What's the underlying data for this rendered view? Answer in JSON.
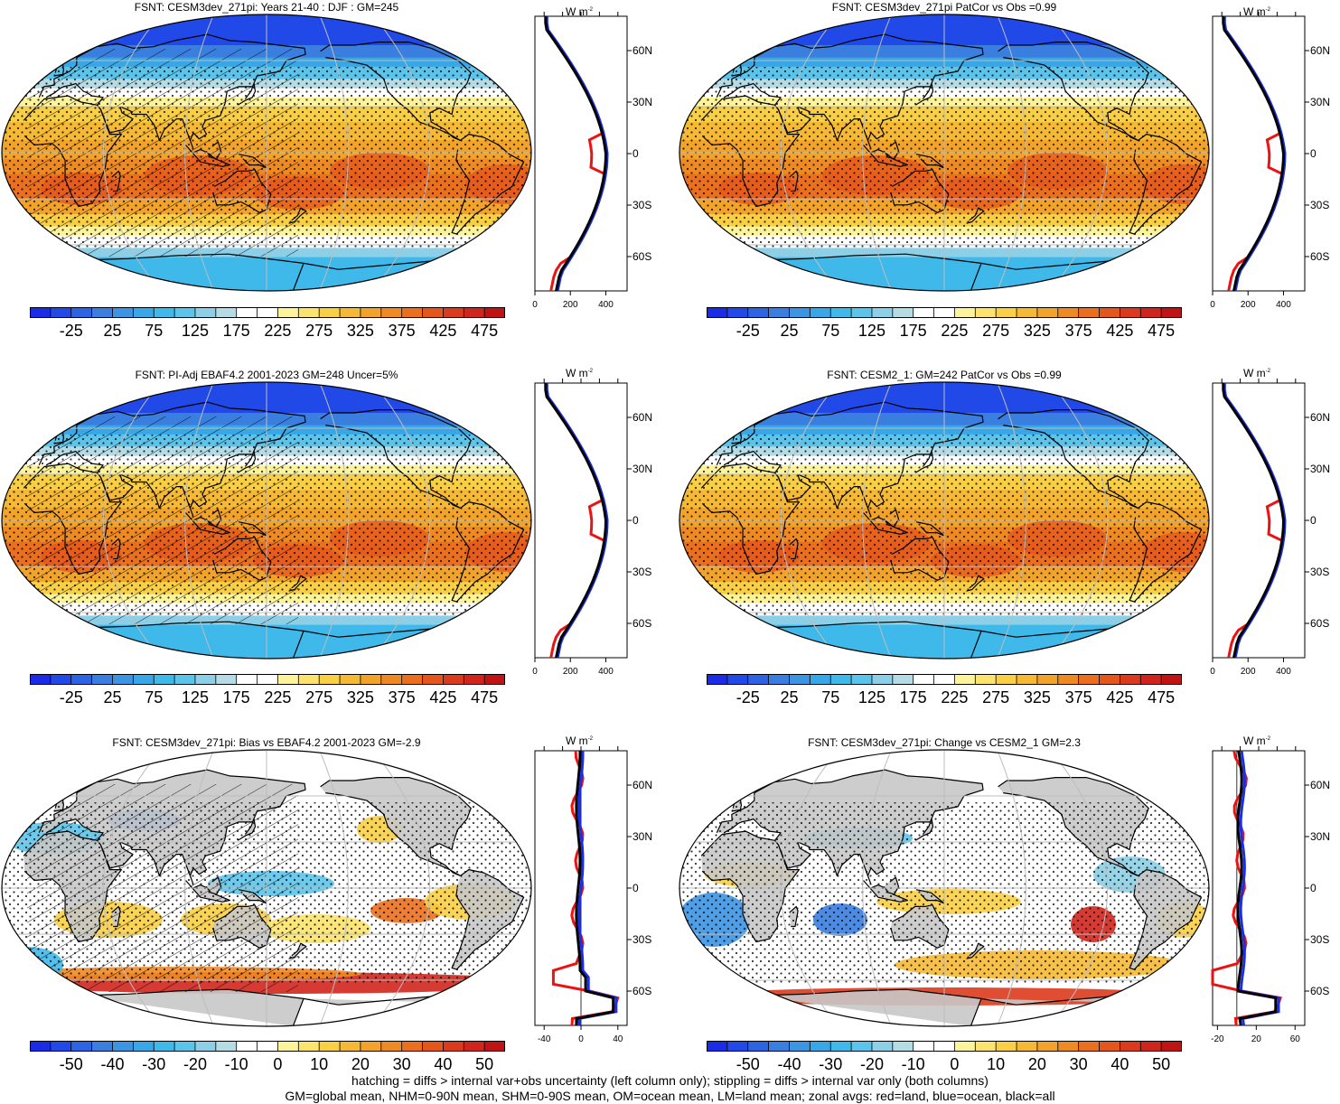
{
  "colors": {
    "levels_abs": [
      "#1b2ce6",
      "#2149e8",
      "#2d64e4",
      "#3a7ee0",
      "#3d94e2",
      "#38a7e8",
      "#3fb8ea",
      "#5cc4ea",
      "#8dcfe6",
      "#b5dbe5",
      "#ffffff",
      "#ffffff",
      "#fdf39a",
      "#fbe36d",
      "#f8cf45",
      "#f5b935",
      "#f2a32b",
      "#ee8a23",
      "#ea701f",
      "#e4561c",
      "#dc3a1c",
      "#d0251d",
      "#c01414"
    ],
    "land_gray": "#c8c8c8",
    "red": "#ee1111",
    "blue": "#1a2ee8",
    "black": "#000000"
  },
  "panels": [
    {
      "id": "cesm3-years",
      "title": "FSNT: CESM3dev_271pi: Years 21-40 : DJF : GM=245",
      "type": "absolute",
      "hatched": true,
      "colorbar_labels": [
        "-25",
        "25",
        "75",
        "125",
        "175",
        "225",
        "275",
        "325",
        "375",
        "425",
        "475"
      ],
      "zonal_unit": "W m",
      "zonal_unit_sup": "-2",
      "zonal_lat_labels": [
        "60N",
        "30N",
        "0",
        "30S",
        "60S"
      ],
      "zonal_x_labels": [
        "0",
        "200",
        "400"
      ],
      "zonal_x_values": [
        0,
        200,
        400
      ],
      "zonal_xlim": [
        0,
        520
      ]
    },
    {
      "id": "cesm3-patcor",
      "title": "FSNT: CESM3dev_271pi PatCor vs Obs =0.99",
      "type": "absolute",
      "hatched": false,
      "colorbar_labels": [
        "-25",
        "25",
        "75",
        "125",
        "175",
        "225",
        "275",
        "325",
        "375",
        "425",
        "475"
      ],
      "zonal_unit": "W m",
      "zonal_unit_sup": "-2",
      "zonal_lat_labels": [
        "60N",
        "30N",
        "0",
        "30S",
        "60S"
      ],
      "zonal_x_labels": [
        "0",
        "200",
        "400"
      ],
      "zonal_x_values": [
        0,
        200,
        400
      ],
      "zonal_xlim": [
        0,
        520
      ]
    },
    {
      "id": "ebaf-obs",
      "title": "FSNT: PI-Adj EBAF4.2 2001-2023 GM=248 Uncer=5%",
      "type": "absolute",
      "hatched": true,
      "colorbar_labels": [
        "-25",
        "25",
        "75",
        "125",
        "175",
        "225",
        "275",
        "325",
        "375",
        "425",
        "475"
      ],
      "zonal_unit": "W m",
      "zonal_unit_sup": "-2",
      "zonal_lat_labels": [
        "60N",
        "30N",
        "0",
        "30S",
        "60S"
      ],
      "zonal_x_labels": [
        "0",
        "200",
        "400"
      ],
      "zonal_x_values": [
        0,
        200,
        400
      ],
      "zonal_xlim": [
        0,
        520
      ]
    },
    {
      "id": "cesm2",
      "title": "FSNT: CESM2_1: GM=242 PatCor vs Obs =0.99",
      "type": "absolute",
      "hatched": false,
      "colorbar_labels": [
        "-25",
        "25",
        "75",
        "125",
        "175",
        "225",
        "275",
        "325",
        "375",
        "425",
        "475"
      ],
      "zonal_unit": "W m",
      "zonal_unit_sup": "-2",
      "zonal_lat_labels": [
        "60N",
        "30N",
        "0",
        "30S",
        "60S"
      ],
      "zonal_x_labels": [
        "0",
        "200",
        "400"
      ],
      "zonal_x_values": [
        0,
        200,
        400
      ],
      "zonal_xlim": [
        0,
        520
      ]
    },
    {
      "id": "bias",
      "title": "FSNT: CESM3dev_271pi: Bias vs EBAF4.2 2001-2023 GM=-2.9",
      "type": "diff",
      "hatched": true,
      "colorbar_labels": [
        "-50",
        "-40",
        "-30",
        "-20",
        "-10",
        "0",
        "10",
        "20",
        "30",
        "40",
        "50"
      ],
      "zonal_unit": "W m",
      "zonal_unit_sup": "-2",
      "zonal_lat_labels": [
        "60N",
        "30N",
        "0",
        "30S",
        "60S"
      ],
      "zonal_x_labels": [
        "-40",
        "0",
        "40"
      ],
      "zonal_x_values": [
        -40,
        0,
        40
      ],
      "zonal_xlim": [
        -50,
        50
      ]
    },
    {
      "id": "change",
      "title": "FSNT: CESM3dev_271pi: Change vs CESM2_1 GM=2.3",
      "type": "diff",
      "hatched": false,
      "colorbar_labels": [
        "-50",
        "-40",
        "-30",
        "-20",
        "-10",
        "0",
        "10",
        "20",
        "30",
        "40",
        "50"
      ],
      "zonal_unit": "W m",
      "zonal_unit_sup": "-2",
      "zonal_lat_labels": [
        "60N",
        "30N",
        "0",
        "30S",
        "60S"
      ],
      "zonal_x_labels": [
        "-20",
        "20",
        "60"
      ],
      "zonal_x_values": [
        -20,
        20,
        60
      ],
      "zonal_xlim": [
        -25,
        70
      ]
    }
  ],
  "footer": {
    "line1": "hatching = diffs > internal var+obs uncertainty (left column only); stippling = diffs > internal var only (both columns)",
    "line2": "GM=global mean, NHM=0-90N mean, SHM=0-90S mean, OM=ocean mean, LM=land mean; zonal avgs: red=land, blue=ocean, black=all"
  }
}
